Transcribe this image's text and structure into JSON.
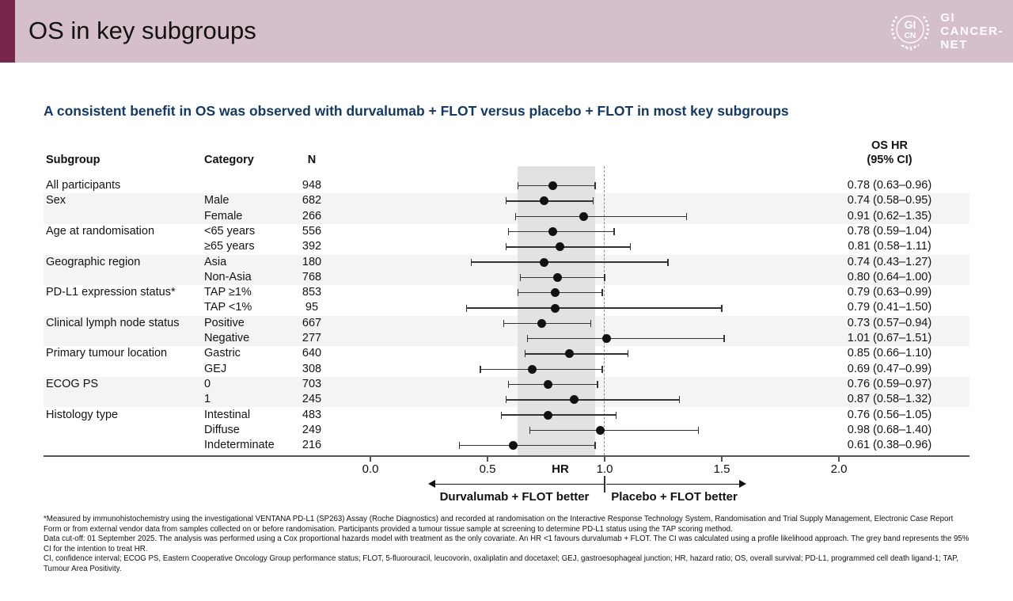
{
  "header": {
    "title": "OS in key subgroups",
    "logo": {
      "emblem_top": "GI",
      "emblem_bottom": "CN",
      "wordmark_line1": "GI",
      "wordmark_line2": "CANCER-",
      "wordmark_line3": "NET"
    }
  },
  "subtitle": "A consistent benefit in OS was observed with durvalumab + FLOT versus placebo + FLOT in most key subgroups",
  "table": {
    "col_subgroup": "Subgroup",
    "col_category": "Category",
    "col_n": "N",
    "col_hr_line1": "OS HR",
    "col_hr_line2": "(95% CI)"
  },
  "chart_data": {
    "type": "scatter",
    "subtype": "forest-plot",
    "xlabel": "HR",
    "x_ticks": [
      0.0,
      0.5,
      1.0,
      1.5,
      2.0
    ],
    "x_tick_labels": [
      "0.0",
      "0.5",
      "1.0",
      "1.5",
      "2.0"
    ],
    "xlim": [
      0.0,
      2.0
    ],
    "reference_line": 1.0,
    "grey_band_ci": [
      0.63,
      0.96
    ],
    "left_arrow_label": "Durvalumab + FLOT better",
    "right_arrow_label": "Placebo + FLOT better",
    "rows": [
      {
        "subgroup": "All participants",
        "category": "",
        "n": 948,
        "hr": 0.78,
        "ci_low": 0.63,
        "ci_high": 0.96,
        "hr_text": "0.78 (0.63–0.96)",
        "shaded": false
      },
      {
        "subgroup": "Sex",
        "category": "Male",
        "n": 682,
        "hr": 0.74,
        "ci_low": 0.58,
        "ci_high": 0.95,
        "hr_text": "0.74 (0.58–0.95)",
        "shaded": true
      },
      {
        "subgroup": "",
        "category": "Female",
        "n": 266,
        "hr": 0.91,
        "ci_low": 0.62,
        "ci_high": 1.35,
        "hr_text": "0.91 (0.62–1.35)",
        "shaded": true
      },
      {
        "subgroup": "Age at randomisation",
        "category": "<65 years",
        "n": 556,
        "hr": 0.78,
        "ci_low": 0.59,
        "ci_high": 1.04,
        "hr_text": "0.78 (0.59–1.04)",
        "shaded": false
      },
      {
        "subgroup": "",
        "category": "≥65 years",
        "n": 392,
        "hr": 0.81,
        "ci_low": 0.58,
        "ci_high": 1.11,
        "hr_text": "0.81 (0.58–1.11)",
        "shaded": false
      },
      {
        "subgroup": "Geographic region",
        "category": "Asia",
        "n": 180,
        "hr": 0.74,
        "ci_low": 0.43,
        "ci_high": 1.27,
        "hr_text": "0.74 (0.43–1.27)",
        "shaded": true
      },
      {
        "subgroup": "",
        "category": "Non-Asia",
        "n": 768,
        "hr": 0.8,
        "ci_low": 0.64,
        "ci_high": 1.0,
        "hr_text": "0.80 (0.64–1.00)",
        "shaded": true
      },
      {
        "subgroup": "PD-L1 expression status*",
        "category": "TAP ≥1%",
        "n": 853,
        "hr": 0.79,
        "ci_low": 0.63,
        "ci_high": 0.99,
        "hr_text": "0.79 (0.63–0.99)",
        "shaded": false
      },
      {
        "subgroup": "",
        "category": "TAP <1%",
        "n": 95,
        "hr": 0.79,
        "ci_low": 0.41,
        "ci_high": 1.5,
        "hr_text": "0.79 (0.41–1.50)",
        "shaded": false
      },
      {
        "subgroup": "Clinical lymph node status",
        "category": "Positive",
        "n": 667,
        "hr": 0.73,
        "ci_low": 0.57,
        "ci_high": 0.94,
        "hr_text": "0.73 (0.57–0.94)",
        "shaded": true
      },
      {
        "subgroup": "",
        "category": "Negative",
        "n": 277,
        "hr": 1.01,
        "ci_low": 0.67,
        "ci_high": 1.51,
        "hr_text": "1.01 (0.67–1.51)",
        "shaded": true
      },
      {
        "subgroup": "Primary tumour location",
        "category": "Gastric",
        "n": 640,
        "hr": 0.85,
        "ci_low": 0.66,
        "ci_high": 1.1,
        "hr_text": "0.85 (0.66–1.10)",
        "shaded": false
      },
      {
        "subgroup": "",
        "category": "GEJ",
        "n": 308,
        "hr": 0.69,
        "ci_low": 0.47,
        "ci_high": 0.99,
        "hr_text": "0.69 (0.47–0.99)",
        "shaded": false
      },
      {
        "subgroup": "ECOG PS",
        "category": "0",
        "n": 703,
        "hr": 0.76,
        "ci_low": 0.59,
        "ci_high": 0.97,
        "hr_text": "0.76 (0.59–0.97)",
        "shaded": true
      },
      {
        "subgroup": "",
        "category": "1",
        "n": 245,
        "hr": 0.87,
        "ci_low": 0.58,
        "ci_high": 1.32,
        "hr_text": "0.87 (0.58–1.32)",
        "shaded": true
      },
      {
        "subgroup": "Histology type",
        "category": "Intestinal",
        "n": 483,
        "hr": 0.76,
        "ci_low": 0.56,
        "ci_high": 1.05,
        "hr_text": "0.76 (0.56–1.05)",
        "shaded": false
      },
      {
        "subgroup": "",
        "category": "Diffuse",
        "n": 249,
        "hr": 0.98,
        "ci_low": 0.68,
        "ci_high": 1.4,
        "hr_text": "0.98 (0.68–1.40)",
        "shaded": false
      },
      {
        "subgroup": "",
        "category": "Indeterminate",
        "n": 216,
        "hr": 0.61,
        "ci_low": 0.38,
        "ci_high": 0.96,
        "hr_text": "0.61 (0.38–0.96)",
        "shaded": false
      }
    ]
  },
  "footnotes": [
    "*Measured by immunohistochemistry using the investigational VENTANA PD-L1 (SP263) Assay (Roche Diagnostics) and recorded at randomisation on the Interactive Response Technology System, Randomisation and Trial Supply Management, Electronic Case Report Form or from external vendor data from samples collected on or before randomisation. Participants provided a tumour tissue sample at screening to determine PD-L1 status using the TAP scoring method.",
    "Data cut-off: 01 September 2025. The analysis was performed using a Cox proportional hazards model with treatment as the only covariate. An HR <1 favours durvalumab + FLOT. The CI was calculated using a profile likelihood approach. The grey band represents the 95% CI for the intention to treat HR.",
    "CI, confidence interval; ECOG PS, Eastern Cooperative Oncology Group performance status; FLOT, 5-fluorouracil, leucovorin, oxaliplatin and docetaxel; GEJ, gastroesophageal junction; HR, hazard ratio; OS, overall survival; PD-L1, programmed cell death ligand-1; TAP, Tumour Area Positivity."
  ],
  "colors": {
    "header_bg": "#d5bfca",
    "accent_bar": "#772548",
    "subtitle_text": "#143a63",
    "row_shade": "#f4f4f4",
    "ci_band": "#e2e2e2",
    "reference_line": "#8c8c8c",
    "marker": "#111111",
    "axis": "#555555"
  }
}
